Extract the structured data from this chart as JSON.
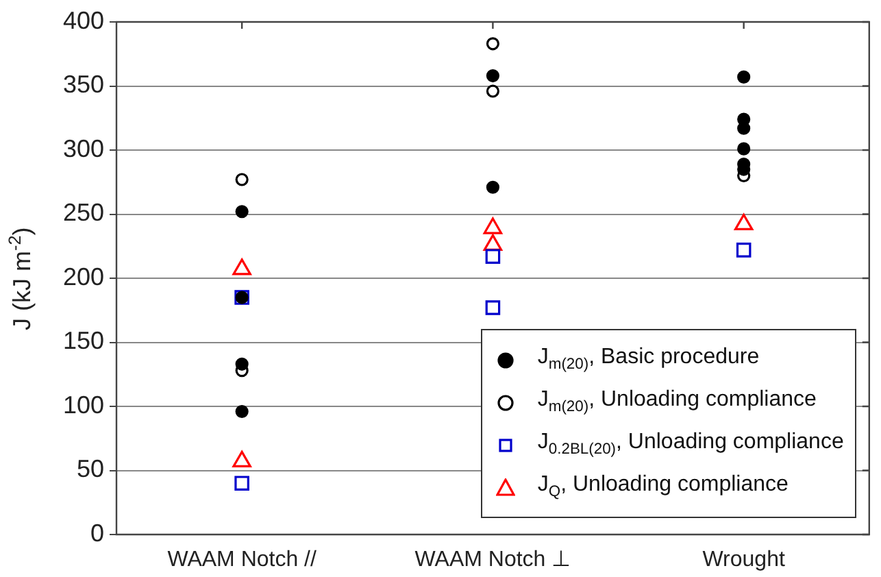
{
  "chart_data": {
    "type": "scatter",
    "ylabel": "J (kJ m$^{-2}$)",
    "categories": [
      "WAAM Notch //",
      "WAAM Notch ⊥",
      "Wrought"
    ],
    "ylim": [
      0,
      400
    ],
    "yticks": [
      0,
      50,
      100,
      150,
      200,
      250,
      300,
      350,
      400
    ],
    "grid": "y",
    "legend": "bottom right",
    "series": [
      {
        "name": "J$_{m(20)}$, Basic procedure",
        "color": "#000000",
        "marker": "circle",
        "x": [
          "WAAM Notch //",
          "WAAM Notch //",
          "WAAM Notch //",
          "WAAM Notch //",
          "WAAM Notch ⊥",
          "WAAM Notch ⊥",
          "Wrought",
          "Wrought",
          "Wrought",
          "Wrought",
          "Wrought",
          "Wrought"
        ],
        "values": [
          252,
          185,
          133,
          96,
          358,
          271,
          357,
          324,
          317,
          301,
          289,
          285
        ]
      },
      {
        "name": "J$_{m(20)}$, Unloading compliance",
        "color": "#000000",
        "marker": "circle",
        "x": [
          "WAAM Notch //",
          "WAAM Notch //",
          "WAAM Notch ⊥",
          "WAAM Notch ⊥",
          "Wrought"
        ],
        "values": [
          277,
          128,
          383,
          346,
          280
        ]
      },
      {
        "name": "J$_{0.2BL(20)}$, Unloading compliance",
        "color": "#0000cc",
        "marker": "square",
        "x": [
          "WAAM Notch //",
          "WAAM Notch //",
          "WAAM Notch ⊥",
          "WAAM Notch ⊥",
          "Wrought"
        ],
        "values": [
          185,
          40,
          217,
          177,
          222
        ]
      },
      {
        "name": "J$_{Q}$, Unloading compliance",
        "color": "#ff0000",
        "marker": "triangle",
        "x": [
          "WAAM Notch //",
          "WAAM Notch //",
          "WAAM Notch ⊥",
          "WAAM Notch ⊥",
          "Wrought"
        ],
        "values": [
          207,
          57,
          239,
          226,
          242
        ]
      }
    ]
  }
}
